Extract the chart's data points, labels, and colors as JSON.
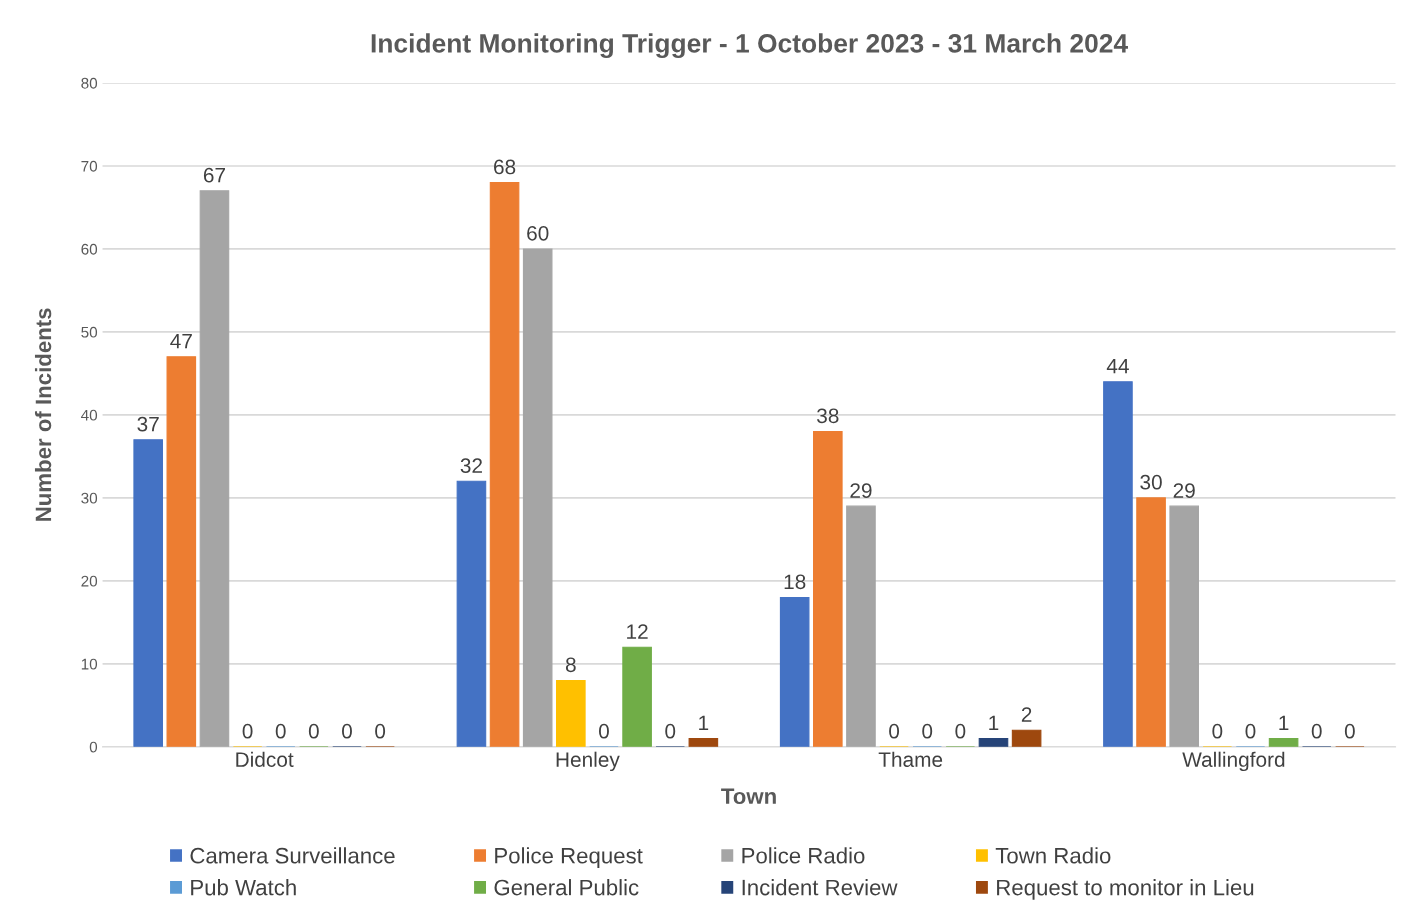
{
  "chart_data": {
    "type": "bar",
    "title": "Incident Monitoring Trigger - 1 October 2023 - 31 March 2024",
    "xlabel": "Town",
    "ylabel": "Number of Incidents",
    "categories": [
      "Didcot",
      "Henley",
      "Thame",
      "Wallingford"
    ],
    "series": [
      {
        "name": "Camera Surveillance",
        "color": "#4472c4",
        "values": [
          37,
          32,
          18,
          44
        ]
      },
      {
        "name": "Police Request",
        "color": "#ed7d31",
        "values": [
          47,
          68,
          38,
          30
        ]
      },
      {
        "name": "Police Radio",
        "color": "#a5a5a5",
        "values": [
          67,
          60,
          29,
          29
        ]
      },
      {
        "name": "Town Radio",
        "color": "#ffc000",
        "values": [
          0,
          8,
          0,
          0
        ]
      },
      {
        "name": "Pub Watch",
        "color": "#5b9bd5",
        "values": [
          0,
          0,
          0,
          0
        ]
      },
      {
        "name": "General Public",
        "color": "#70ad47",
        "values": [
          0,
          12,
          0,
          1
        ]
      },
      {
        "name": "Incident Review",
        "color": "#264478",
        "values": [
          0,
          0,
          1,
          0
        ]
      },
      {
        "name": "Request to monitor in Lieu",
        "color": "#9e480e",
        "values": [
          0,
          1,
          2,
          0
        ]
      }
    ],
    "ylim": [
      0,
      80
    ],
    "yticks": [
      0,
      10,
      20,
      30,
      40,
      50,
      60,
      70,
      80
    ],
    "grid": "y",
    "legend": "bottom",
    "data_labels": true
  }
}
